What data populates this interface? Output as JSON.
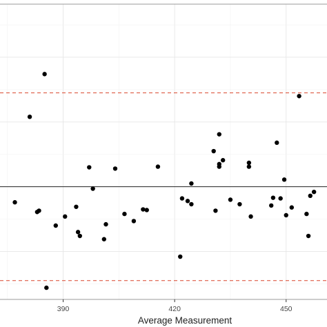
{
  "chart_data": {
    "type": "scatter",
    "xlabel": "Average Measurement",
    "ylabel": "",
    "xlim": [
      373,
      461
    ],
    "ylim": [
      -1.74,
      2.82
    ],
    "x_ticks": [
      390,
      420,
      450
    ],
    "x_tick_labels": [
      "390",
      "420",
      "450"
    ],
    "reference_lines": [
      {
        "name": "upper limit",
        "y": 1.45,
        "style": "dashed",
        "color": "#d9452b"
      },
      {
        "name": "mean",
        "y": 0.0,
        "style": "solid",
        "color": "#222222"
      },
      {
        "name": "lower limit",
        "y": -1.45,
        "style": "dashed",
        "color": "#d9452b"
      }
    ],
    "grid": true,
    "points": [
      {
        "x": 377.0,
        "y": -0.24
      },
      {
        "x": 381.0,
        "y": 1.08
      },
      {
        "x": 383.0,
        "y": -0.39
      },
      {
        "x": 383.5,
        "y": -0.37
      },
      {
        "x": 385.0,
        "y": 1.74
      },
      {
        "x": 385.5,
        "y": -1.56
      },
      {
        "x": 388.0,
        "y": -0.6
      },
      {
        "x": 390.5,
        "y": -0.46
      },
      {
        "x": 393.5,
        "y": -0.31
      },
      {
        "x": 394.0,
        "y": -0.7
      },
      {
        "x": 394.5,
        "y": -0.76
      },
      {
        "x": 397.0,
        "y": 0.3
      },
      {
        "x": 398.0,
        "y": -0.03
      },
      {
        "x": 401.5,
        "y": -0.58
      },
      {
        "x": 401.0,
        "y": -0.81
      },
      {
        "x": 404.0,
        "y": 0.28
      },
      {
        "x": 406.5,
        "y": -0.42
      },
      {
        "x": 409.0,
        "y": -0.53
      },
      {
        "x": 411.5,
        "y": -0.35
      },
      {
        "x": 412.5,
        "y": -0.36
      },
      {
        "x": 415.5,
        "y": 0.31
      },
      {
        "x": 421.5,
        "y": -1.08
      },
      {
        "x": 422.0,
        "y": -0.18
      },
      {
        "x": 423.5,
        "y": -0.22
      },
      {
        "x": 424.5,
        "y": 0.05
      },
      {
        "x": 424.5,
        "y": -0.27
      },
      {
        "x": 430.5,
        "y": 0.55
      },
      {
        "x": 431.0,
        "y": -0.37
      },
      {
        "x": 432.0,
        "y": 0.81
      },
      {
        "x": 432.0,
        "y": 0.31
      },
      {
        "x": 432.0,
        "y": 0.35
      },
      {
        "x": 433.0,
        "y": 0.41
      },
      {
        "x": 435.0,
        "y": -0.2
      },
      {
        "x": 437.5,
        "y": -0.27
      },
      {
        "x": 440.0,
        "y": 0.31
      },
      {
        "x": 440.0,
        "y": 0.37
      },
      {
        "x": 440.5,
        "y": -0.46
      },
      {
        "x": 446.0,
        "y": -0.29
      },
      {
        "x": 446.5,
        "y": -0.17
      },
      {
        "x": 447.5,
        "y": 0.68
      },
      {
        "x": 448.5,
        "y": -0.18
      },
      {
        "x": 449.5,
        "y": 0.11
      },
      {
        "x": 450.0,
        "y": -0.44
      },
      {
        "x": 451.5,
        "y": -0.32
      },
      {
        "x": 453.5,
        "y": 1.4
      },
      {
        "x": 455.5,
        "y": -0.42
      },
      {
        "x": 456.0,
        "y": -0.76
      },
      {
        "x": 456.5,
        "y": -0.14
      },
      {
        "x": 457.5,
        "y": -0.08
      }
    ]
  }
}
